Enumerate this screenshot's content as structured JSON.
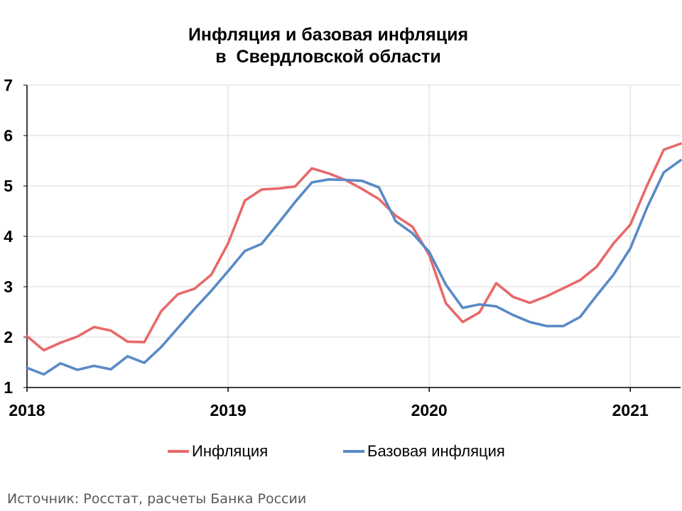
{
  "chart_data": {
    "type": "line",
    "title": [
      "Инфляция и базовая инфляция",
      "в  Свердловской области"
    ],
    "xlabel": "",
    "ylabel": "",
    "ylim": [
      1,
      7
    ],
    "y_ticks": [
      1,
      2,
      3,
      4,
      5,
      6,
      7
    ],
    "x_ticks": [
      "2018",
      "2019",
      "2020",
      "2021"
    ],
    "x_start": "2018-01",
    "x_end": "2021-03",
    "x_axis_max": "2021-04",
    "grid": true,
    "legend_position": "bottom",
    "series": [
      {
        "name": "Инфляция",
        "color": "#e8696a",
        "x": [
          "2018-01",
          "2018-02",
          "2018-03",
          "2018-04",
          "2018-05",
          "2018-06",
          "2018-07",
          "2018-08",
          "2018-09",
          "2018-10",
          "2018-11",
          "2018-12",
          "2019-01",
          "2019-02",
          "2019-03",
          "2019-04",
          "2019-05",
          "2019-06",
          "2019-07",
          "2019-08",
          "2019-09",
          "2019-10",
          "2019-11",
          "2019-12",
          "2020-01",
          "2020-02",
          "2020-03",
          "2020-04",
          "2020-05",
          "2020-06",
          "2020-07",
          "2020-08",
          "2020-09",
          "2020-10",
          "2020-11",
          "2020-12",
          "2021-01",
          "2021-02",
          "2021-03",
          "2021-04"
        ],
        "values": [
          2.02,
          1.74,
          1.89,
          2.01,
          2.2,
          2.13,
          1.91,
          1.9,
          2.51,
          2.85,
          2.96,
          3.24,
          3.86,
          4.71,
          4.93,
          4.95,
          4.99,
          5.35,
          5.25,
          5.12,
          4.94,
          4.74,
          4.41,
          4.19,
          3.63,
          2.67,
          2.3,
          2.49,
          3.07,
          2.8,
          2.68,
          2.81,
          2.97,
          3.13,
          3.4,
          3.86,
          4.23,
          5.01,
          5.72,
          5.84
        ]
      },
      {
        "name": "Базовая инфляция",
        "color": "#5a8ac6",
        "x": [
          "2018-01",
          "2018-02",
          "2018-03",
          "2018-04",
          "2018-05",
          "2018-06",
          "2018-07",
          "2018-08",
          "2018-09",
          "2018-10",
          "2018-11",
          "2018-12",
          "2019-01",
          "2019-02",
          "2019-03",
          "2019-04",
          "2019-05",
          "2019-06",
          "2019-07",
          "2019-08",
          "2019-09",
          "2019-10",
          "2019-11",
          "2019-12",
          "2020-01",
          "2020-02",
          "2020-03",
          "2020-04",
          "2020-05",
          "2020-06",
          "2020-07",
          "2020-08",
          "2020-09",
          "2020-10",
          "2020-11",
          "2020-12",
          "2021-01",
          "2021-02",
          "2021-03",
          "2021-04"
        ],
        "values": [
          1.39,
          1.26,
          1.48,
          1.35,
          1.43,
          1.36,
          1.62,
          1.49,
          1.8,
          2.18,
          2.56,
          2.92,
          3.31,
          3.71,
          3.85,
          4.26,
          4.68,
          5.07,
          5.13,
          5.12,
          5.1,
          4.97,
          4.3,
          4.06,
          3.69,
          3.04,
          2.58,
          2.65,
          2.61,
          2.44,
          2.3,
          2.22,
          2.22,
          2.4,
          2.83,
          3.24,
          3.76,
          4.57,
          5.27,
          5.51
        ]
      }
    ]
  },
  "source_note": "Источник: Росстат, расчеты Банка России"
}
